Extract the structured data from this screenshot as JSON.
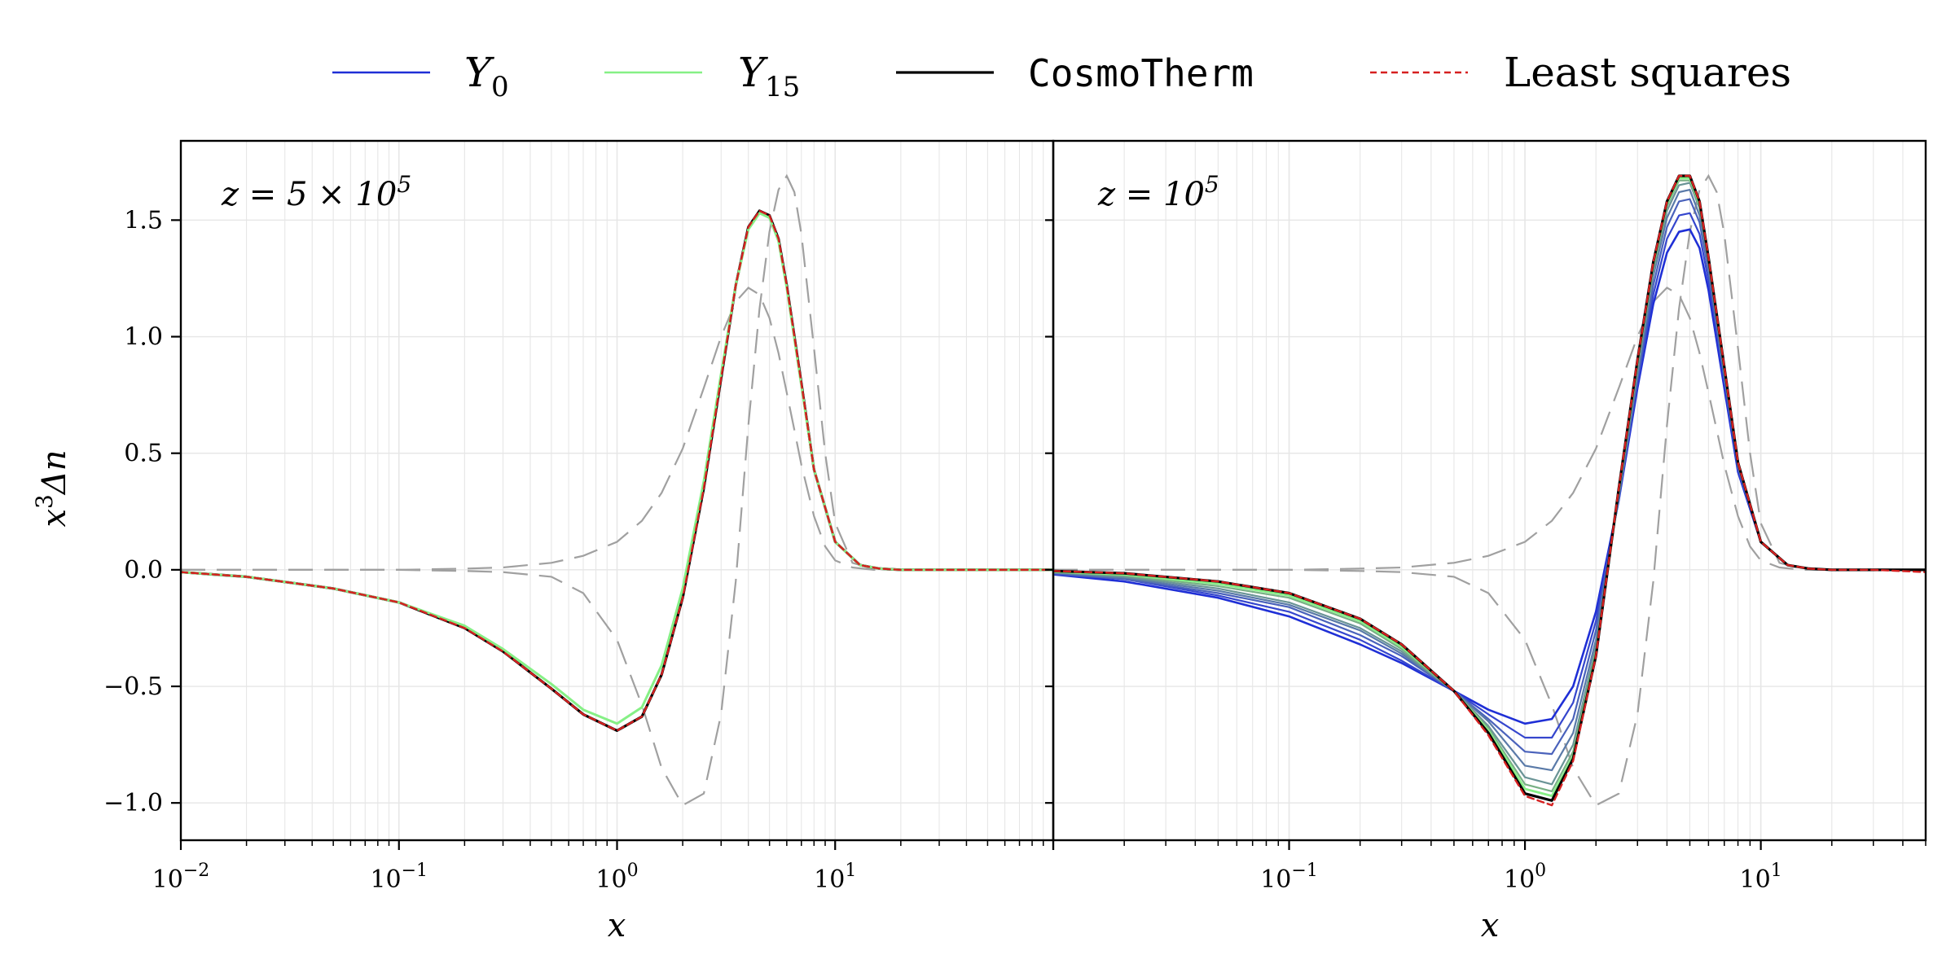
{
  "legend": [
    {
      "name": "Y0",
      "base": "Y",
      "sub": "0",
      "color": "#1f2fd6",
      "dash": ""
    },
    {
      "name": "Y15",
      "base": "Y",
      "sub": "15",
      "color": "#86f086",
      "dash": ""
    },
    {
      "name": "CosmoTherm",
      "mono": true,
      "color": "#000000",
      "dash": ""
    },
    {
      "name": "Least squares",
      "color": "#d62020",
      "dash": "8,5"
    }
  ],
  "colors": {
    "y0": "#1f2fd6",
    "y15": "#86f086",
    "cosmotherm": "#000000",
    "least_squares": "#d62020",
    "basis": "#a0a0a0",
    "grid": "#e6e6e6"
  },
  "chart_data": [
    {
      "type": "line",
      "panel": "left",
      "annotation": "z = 5 × 10^5",
      "annotation_parts": {
        "lhs": "z = 5 × 10",
        "exp": "5"
      },
      "xlabel": "x",
      "ylabel": "x³Δn",
      "ylabel_parts": {
        "x": "x",
        "exp": "3",
        "rest": "Δn"
      },
      "xscale": "log",
      "xlim": [
        0.01,
        100
      ],
      "ylim": [
        -1.16,
        1.84
      ],
      "yticks": [
        -1.0,
        -0.5,
        0.0,
        0.5,
        1.0,
        1.5
      ],
      "ytick_labels": [
        "−1.0",
        "−0.5",
        "0.0",
        "0.5",
        "1.0",
        "1.5"
      ],
      "xticks": [
        0.01,
        0.1,
        1,
        10
      ],
      "xtick_labels": [
        {
          "base": "10",
          "exp": "−2"
        },
        {
          "base": "10",
          "exp": "−1"
        },
        {
          "base": "10",
          "exp": "0"
        },
        {
          "base": "10",
          "exp": "1"
        }
      ],
      "grid": true,
      "x": [
        0.01,
        0.02,
        0.05,
        0.1,
        0.2,
        0.3,
        0.5,
        0.7,
        1.0,
        1.3,
        1.6,
        2.0,
        2.5,
        3.0,
        3.5,
        4.0,
        4.5,
        5.0,
        5.5,
        6.0,
        7.0,
        8.0,
        10.0,
        13.0,
        16.0,
        20.0,
        30.0,
        50.0,
        100.0
      ],
      "series": [
        {
          "name": "CosmoTherm",
          "color": "#000000",
          "width": 3.2,
          "dash": "",
          "values": [
            -0.01,
            -0.03,
            -0.08,
            -0.14,
            -0.25,
            -0.35,
            -0.51,
            -0.62,
            -0.69,
            -0.63,
            -0.45,
            -0.12,
            0.35,
            0.82,
            1.22,
            1.47,
            1.54,
            1.52,
            1.42,
            1.22,
            0.8,
            0.43,
            0.12,
            0.02,
            0.005,
            0.0,
            0.0,
            0.0,
            0.0
          ]
        },
        {
          "name": "Y15",
          "color": "#86f086",
          "width": 3.0,
          "dash": "",
          "values": [
            -0.01,
            -0.03,
            -0.08,
            -0.14,
            -0.24,
            -0.34,
            -0.49,
            -0.6,
            -0.66,
            -0.59,
            -0.41,
            -0.08,
            0.38,
            0.84,
            1.22,
            1.46,
            1.53,
            1.51,
            1.41,
            1.21,
            0.79,
            0.43,
            0.12,
            0.02,
            0.005,
            0.0,
            0.0,
            0.0,
            0.0
          ]
        },
        {
          "name": "Least squares",
          "color": "#d62020",
          "width": 2.4,
          "dash": "8,5",
          "values": [
            -0.01,
            -0.03,
            -0.08,
            -0.14,
            -0.25,
            -0.35,
            -0.51,
            -0.62,
            -0.69,
            -0.63,
            -0.45,
            -0.12,
            0.35,
            0.82,
            1.22,
            1.47,
            1.54,
            1.52,
            1.42,
            1.22,
            0.8,
            0.43,
            0.12,
            0.02,
            0.005,
            0.0,
            0.0,
            0.0,
            0.0
          ]
        }
      ]
    },
    {
      "type": "line",
      "panel": "right",
      "annotation": "z = 10^5",
      "annotation_parts": {
        "lhs": "z = 10",
        "exp": "5"
      },
      "xlabel": "x",
      "xscale": "log",
      "xlim": [
        0.01,
        50
      ],
      "ylim": [
        -1.16,
        1.84
      ],
      "xticks": [
        0.1,
        1,
        10
      ],
      "xtick_labels": [
        {
          "base": "10",
          "exp": "−1"
        },
        {
          "base": "10",
          "exp": "0"
        },
        {
          "base": "10",
          "exp": "1"
        }
      ],
      "grid": true,
      "x": [
        0.01,
        0.02,
        0.05,
        0.1,
        0.2,
        0.3,
        0.5,
        0.7,
        1.0,
        1.3,
        1.6,
        2.0,
        2.5,
        3.0,
        3.5,
        4.0,
        4.5,
        5.0,
        5.5,
        6.0,
        7.0,
        8.0,
        10.0,
        13.0,
        16.0,
        20.0,
        30.0,
        50.0
      ],
      "series": [
        {
          "name": "Y0",
          "color": "#1f2fd6",
          "width": 2.6,
          "dash": "",
          "values": [
            -0.02,
            -0.05,
            -0.12,
            -0.2,
            -0.32,
            -0.4,
            -0.52,
            -0.6,
            -0.66,
            -0.64,
            -0.5,
            -0.18,
            0.3,
            0.78,
            1.14,
            1.36,
            1.45,
            1.46,
            1.38,
            1.2,
            0.78,
            0.42,
            0.12,
            0.02,
            0.005,
            0.0,
            0.0,
            0.0
          ]
        },
        {
          "name": "",
          "color": "#3546cd",
          "width": 2.2,
          "dash": "",
          "values": [
            -0.02,
            -0.04,
            -0.11,
            -0.18,
            -0.3,
            -0.39,
            -0.52,
            -0.62,
            -0.72,
            -0.72,
            -0.57,
            -0.22,
            0.3,
            0.8,
            1.18,
            1.42,
            1.52,
            1.53,
            1.44,
            1.24,
            0.81,
            0.43,
            0.12,
            0.02,
            0.005,
            0.0,
            0.0,
            0.0
          ]
        },
        {
          "name": "",
          "color": "#4a62bb",
          "width": 2.2,
          "dash": "",
          "values": [
            -0.015,
            -0.04,
            -0.1,
            -0.16,
            -0.28,
            -0.37,
            -0.52,
            -0.64,
            -0.78,
            -0.79,
            -0.64,
            -0.26,
            0.31,
            0.82,
            1.22,
            1.47,
            1.58,
            1.59,
            1.49,
            1.28,
            0.83,
            0.44,
            0.12,
            0.02,
            0.005,
            0.0,
            0.0,
            0.0
          ]
        },
        {
          "name": "",
          "color": "#5a7aa8",
          "width": 2.2,
          "dash": "",
          "values": [
            -0.012,
            -0.035,
            -0.09,
            -0.15,
            -0.26,
            -0.36,
            -0.52,
            -0.65,
            -0.84,
            -0.86,
            -0.7,
            -0.3,
            0.32,
            0.84,
            1.26,
            1.51,
            1.62,
            1.63,
            1.52,
            1.3,
            0.84,
            0.45,
            0.12,
            0.02,
            0.005,
            0.0,
            0.0,
            0.0
          ]
        },
        {
          "name": "",
          "color": "#6a9496",
          "width": 2.2,
          "dash": "",
          "values": [
            -0.01,
            -0.03,
            -0.08,
            -0.14,
            -0.25,
            -0.35,
            -0.52,
            -0.67,
            -0.89,
            -0.92,
            -0.75,
            -0.33,
            0.33,
            0.86,
            1.28,
            1.54,
            1.65,
            1.66,
            1.55,
            1.32,
            0.85,
            0.45,
            0.12,
            0.02,
            0.005,
            0.0,
            0.0,
            0.0
          ]
        },
        {
          "name": "",
          "color": "#78b084",
          "width": 2.2,
          "dash": "",
          "values": [
            -0.009,
            -0.025,
            -0.07,
            -0.12,
            -0.23,
            -0.34,
            -0.52,
            -0.68,
            -0.92,
            -0.95,
            -0.78,
            -0.35,
            0.34,
            0.88,
            1.3,
            1.56,
            1.67,
            1.67,
            1.56,
            1.33,
            0.86,
            0.46,
            0.12,
            0.02,
            0.005,
            0.0,
            0.0,
            0.0
          ]
        },
        {
          "name": "Y15",
          "color": "#86f086",
          "width": 2.8,
          "dash": "",
          "values": [
            -0.008,
            -0.02,
            -0.06,
            -0.11,
            -0.22,
            -0.33,
            -0.52,
            -0.69,
            -0.94,
            -0.97,
            -0.8,
            -0.36,
            0.34,
            0.89,
            1.31,
            1.57,
            1.68,
            1.68,
            1.57,
            1.34,
            0.86,
            0.46,
            0.12,
            0.02,
            0.005,
            0.0,
            0.0,
            0.0
          ]
        },
        {
          "name": "CosmoTherm",
          "color": "#000000",
          "width": 3.2,
          "dash": "",
          "values": [
            -0.005,
            -0.015,
            -0.05,
            -0.1,
            -0.21,
            -0.32,
            -0.52,
            -0.7,
            -0.96,
            -0.99,
            -0.81,
            -0.37,
            0.35,
            0.9,
            1.32,
            1.58,
            1.69,
            1.69,
            1.58,
            1.34,
            0.87,
            0.46,
            0.12,
            0.02,
            0.005,
            0.0,
            0.0,
            0.0
          ]
        },
        {
          "name": "Least squares",
          "color": "#d62020",
          "width": 2.4,
          "dash": "8,5",
          "values": [
            -0.005,
            -0.015,
            -0.05,
            -0.1,
            -0.21,
            -0.32,
            -0.52,
            -0.71,
            -0.97,
            -1.01,
            -0.82,
            -0.37,
            0.35,
            0.9,
            1.32,
            1.58,
            1.69,
            1.69,
            1.58,
            1.34,
            0.87,
            0.46,
            0.12,
            0.02,
            0.005,
            0.0,
            0.0,
            -0.01
          ]
        }
      ]
    }
  ],
  "basis_curves": {
    "color": "#a0a0a0",
    "dash": "30,14",
    "x": [
      0.01,
      0.02,
      0.05,
      0.1,
      0.2,
      0.3,
      0.5,
      0.7,
      1.0,
      1.3,
      1.6,
      2.0,
      2.5,
      3.0,
      3.5,
      4.0,
      4.5,
      5.0,
      5.5,
      6.0,
      6.5,
      7.0,
      8.0,
      9.0,
      10.0,
      12.0,
      15.0,
      20.0,
      30.0,
      50.0,
      100.0
    ],
    "curves": [
      [
        0.0,
        0.0,
        0.0,
        0.0,
        0.005,
        0.01,
        0.03,
        0.06,
        0.12,
        0.21,
        0.33,
        0.52,
        0.78,
        1.0,
        1.15,
        1.21,
        1.18,
        1.08,
        0.93,
        0.76,
        0.6,
        0.45,
        0.23,
        0.1,
        0.04,
        0.01,
        0.0,
        0.0,
        0.0,
        0.0,
        0.0
      ],
      [
        0.0,
        0.0,
        0.0,
        0.0,
        -0.005,
        -0.01,
        -0.03,
        -0.1,
        -0.3,
        -0.58,
        -0.85,
        -1.01,
        -0.96,
        -0.62,
        -0.05,
        0.62,
        1.12,
        1.45,
        1.63,
        1.69,
        1.62,
        1.44,
        0.95,
        0.5,
        0.2,
        0.03,
        0.003,
        0.0,
        0.0,
        0.0,
        0.0
      ]
    ]
  }
}
